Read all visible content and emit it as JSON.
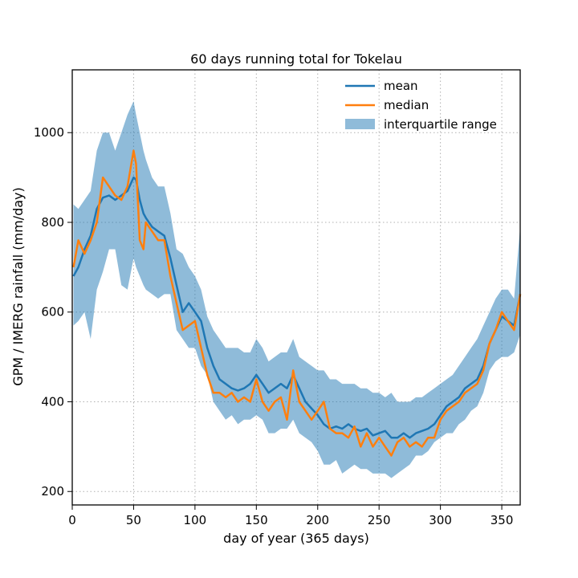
{
  "chart_data": {
    "type": "line",
    "title": "60 days running total for Tokelau",
    "xlabel": "day of year (365 days)",
    "ylabel": "GPM / IMERG rainfall (mm/day)",
    "xlim": [
      0,
      365
    ],
    "ylim": [
      170,
      1140
    ],
    "xticks": [
      0,
      50,
      100,
      150,
      200,
      250,
      300,
      350
    ],
    "yticks": [
      200,
      400,
      600,
      800,
      1000
    ],
    "grid": true,
    "legend_position": "top-right",
    "colors": {
      "mean": "#1f77b4",
      "median": "#ff7f0e",
      "iqr": "#1f77b4"
    },
    "x": [
      1,
      5,
      10,
      15,
      20,
      25,
      30,
      35,
      40,
      45,
      50,
      52,
      55,
      58,
      60,
      65,
      70,
      75,
      80,
      85,
      90,
      95,
      100,
      105,
      110,
      115,
      120,
      125,
      130,
      135,
      140,
      145,
      150,
      155,
      160,
      165,
      170,
      175,
      180,
      185,
      190,
      195,
      200,
      205,
      210,
      215,
      220,
      225,
      230,
      235,
      240,
      245,
      250,
      255,
      260,
      265,
      270,
      275,
      280,
      285,
      290,
      295,
      300,
      305,
      310,
      315,
      320,
      325,
      330,
      335,
      340,
      345,
      350,
      355,
      360,
      365
    ],
    "series": [
      {
        "name": "mean",
        "values": [
          680,
          700,
          740,
          770,
          830,
          855,
          860,
          850,
          860,
          870,
          900,
          895,
          850,
          820,
          810,
          790,
          780,
          770,
          720,
          660,
          600,
          620,
          600,
          580,
          520,
          480,
          450,
          440,
          430,
          425,
          430,
          440,
          460,
          440,
          420,
          430,
          440,
          430,
          460,
          430,
          400,
          385,
          370,
          350,
          340,
          345,
          340,
          350,
          340,
          335,
          340,
          325,
          330,
          335,
          320,
          320,
          330,
          320,
          330,
          335,
          340,
          350,
          370,
          390,
          400,
          410,
          430,
          440,
          450,
          480,
          530,
          560,
          590,
          580,
          570,
          640
        ]
      },
      {
        "name": "median",
        "values": [
          700,
          760,
          730,
          760,
          800,
          900,
          880,
          860,
          850,
          880,
          960,
          930,
          760,
          740,
          800,
          780,
          760,
          760,
          680,
          620,
          560,
          570,
          580,
          520,
          460,
          420,
          420,
          410,
          420,
          400,
          410,
          400,
          450,
          400,
          380,
          400,
          410,
          360,
          470,
          400,
          380,
          360,
          380,
          400,
          340,
          330,
          330,
          320,
          345,
          300,
          330,
          300,
          320,
          300,
          280,
          310,
          320,
          300,
          310,
          300,
          320,
          320,
          360,
          380,
          390,
          400,
          420,
          430,
          440,
          470,
          530,
          560,
          600,
          580,
          560,
          640
        ]
      },
      {
        "name": "interquartile range",
        "lower": [
          570,
          580,
          600,
          540,
          650,
          690,
          740,
          740,
          660,
          650,
          720,
          700,
          680,
          660,
          650,
          640,
          630,
          640,
          640,
          560,
          540,
          520,
          520,
          480,
          460,
          400,
          380,
          360,
          370,
          350,
          360,
          360,
          370,
          360,
          330,
          330,
          340,
          340,
          360,
          330,
          320,
          310,
          290,
          260,
          260,
          270,
          240,
          250,
          260,
          250,
          250,
          240,
          240,
          240,
          230,
          240,
          250,
          260,
          280,
          280,
          290,
          310,
          320,
          330,
          330,
          350,
          360,
          380,
          390,
          420,
          470,
          490,
          500,
          500,
          510,
          550
        ],
        "upper": [
          840,
          830,
          850,
          870,
          960,
          1000,
          1000,
          960,
          1000,
          1040,
          1070,
          1040,
          1000,
          960,
          940,
          900,
          880,
          880,
          820,
          740,
          730,
          700,
          680,
          650,
          590,
          560,
          540,
          520,
          520,
          520,
          510,
          510,
          540,
          520,
          490,
          500,
          510,
          510,
          540,
          500,
          490,
          480,
          470,
          470,
          450,
          450,
          440,
          440,
          440,
          430,
          430,
          420,
          420,
          410,
          420,
          400,
          400,
          400,
          410,
          410,
          420,
          430,
          440,
          450,
          460,
          480,
          500,
          520,
          540,
          570,
          600,
          630,
          650,
          650,
          630,
          790
        ]
      }
    ]
  }
}
